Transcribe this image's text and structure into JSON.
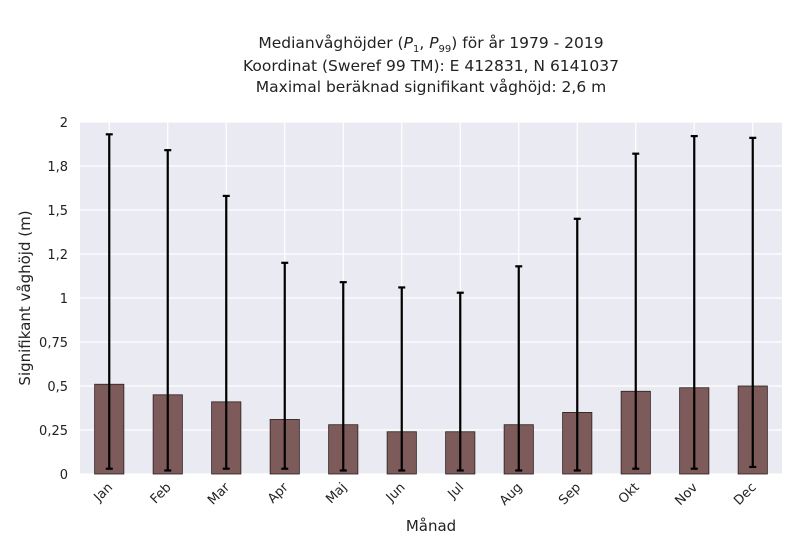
{
  "chart_data": {
    "type": "bar",
    "title_lines": [
      "Medianvåghöjder (P1, P99) för år 1979 - 2019",
      "Koordinat (Sweref 99 TM): E 412831, N 6141037",
      "Maximal beräknad signifikant våghöjd: 2,6 m"
    ],
    "title_math": {
      "prefix": "Medianvåghöjder (",
      "p1": "P",
      "p1_sub": "1",
      "sep": ", ",
      "p99": "P",
      "p99_sub": "99",
      "suffix": ") för år 1979 - 2019"
    },
    "xlabel": "Månad",
    "ylabel": "Signifikant våghöjd (m)",
    "categories": [
      "Jan",
      "Feb",
      "Mar",
      "Apr",
      "Maj",
      "Jun",
      "Jul",
      "Aug",
      "Sep",
      "Okt",
      "Nov",
      "Dec"
    ],
    "values": [
      0.51,
      0.45,
      0.41,
      0.31,
      0.28,
      0.24,
      0.24,
      0.28,
      0.35,
      0.47,
      0.49,
      0.5
    ],
    "p1": [
      0.03,
      0.02,
      0.03,
      0.03,
      0.02,
      0.02,
      0.02,
      0.02,
      0.02,
      0.03,
      0.03,
      0.04
    ],
    "p99": [
      1.93,
      1.84,
      1.58,
      1.2,
      1.09,
      1.06,
      1.03,
      1.18,
      1.45,
      1.82,
      1.92,
      1.91
    ],
    "ylim": [
      0,
      2
    ],
    "yticks": [
      0,
      0.25,
      0.5,
      0.75,
      1,
      1.25,
      1.5,
      1.75,
      2
    ],
    "ytick_labels": [
      "0",
      "0,25",
      "0,5",
      "0,75",
      "1",
      "1,2",
      "1,5",
      "1,8",
      "2"
    ],
    "grid": true,
    "colors": {
      "bar": "#7d5b5b",
      "bar_edge": "#2a1f1f",
      "background": "#eaeaf2",
      "grid": "#ffffff",
      "errorbar": "#000000"
    }
  }
}
